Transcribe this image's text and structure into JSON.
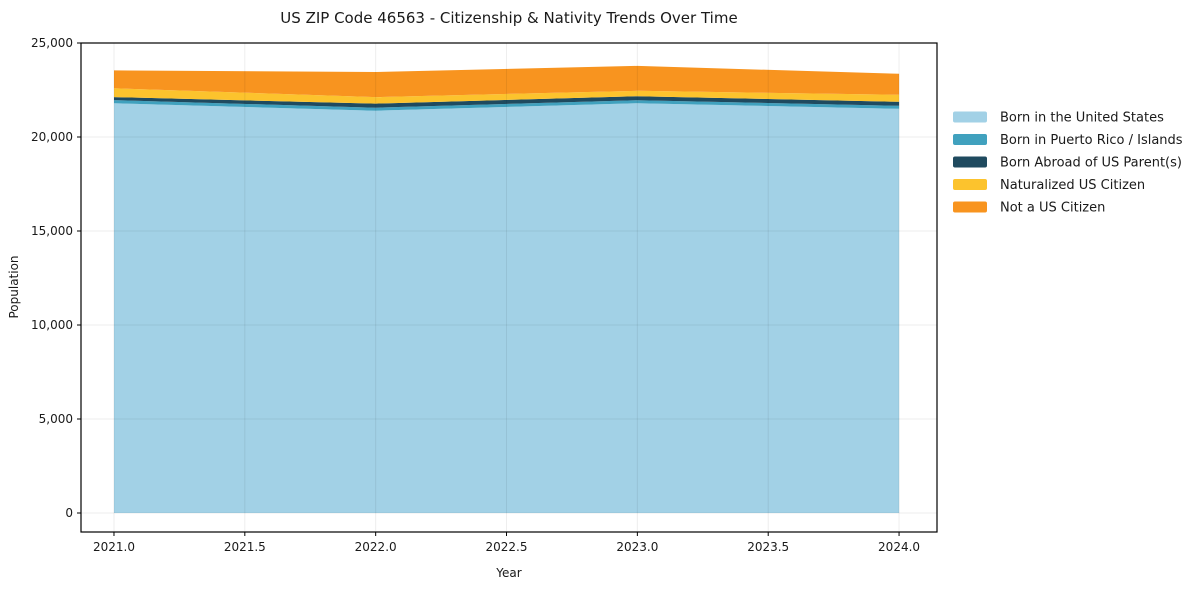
{
  "chart_data": {
    "type": "area",
    "stacked": true,
    "title": "US ZIP Code 46563 - Citizenship & Nativity Trends Over Time",
    "xlabel": "Year",
    "ylabel": "Population",
    "x": [
      2021,
      2022,
      2023,
      2024
    ],
    "xlim": [
      2020.874,
      2024.145
    ],
    "ylim": [
      0,
      25000
    ],
    "grid": true,
    "legend_position": "right-outside",
    "xticks": {
      "values": [
        2021.0,
        2021.5,
        2022.0,
        2022.5,
        2023.0,
        2023.5,
        2024.0
      ],
      "labels": [
        "2021.0",
        "2021.5",
        "2022.0",
        "2022.5",
        "2023.0",
        "2023.5",
        "2024.0"
      ]
    },
    "yticks": {
      "values": [
        0,
        5000,
        10000,
        15000,
        20000,
        25000
      ],
      "labels": [
        "0",
        "5,000",
        "10,000",
        "15,000",
        "20,000",
        "25,000"
      ]
    },
    "series": [
      {
        "name": "Born in the United States",
        "color": "#a2d1e6",
        "values": [
          21800,
          21400,
          21800,
          21500
        ]
      },
      {
        "name": "Born in Puerto Rico / Islands",
        "color": "#40a1be",
        "values": [
          165,
          160,
          160,
          160
        ]
      },
      {
        "name": "Born Abroad of US Parent(s)",
        "color": "#1f4a5f",
        "values": [
          160,
          215,
          210,
          210
        ]
      },
      {
        "name": "Naturalized US Citizen",
        "color": "#fcc32d",
        "values": [
          465,
          345,
          290,
          375
        ]
      },
      {
        "name": "Not a US Citizen",
        "color": "#f8941f",
        "values": [
          955,
          1340,
          1320,
          1115
        ]
      }
    ],
    "colors": {
      "spine": "#000000",
      "grid": "rgba(0,0,0,0.07)",
      "text": "#1a1a1a",
      "background": "#ffffff"
    }
  }
}
